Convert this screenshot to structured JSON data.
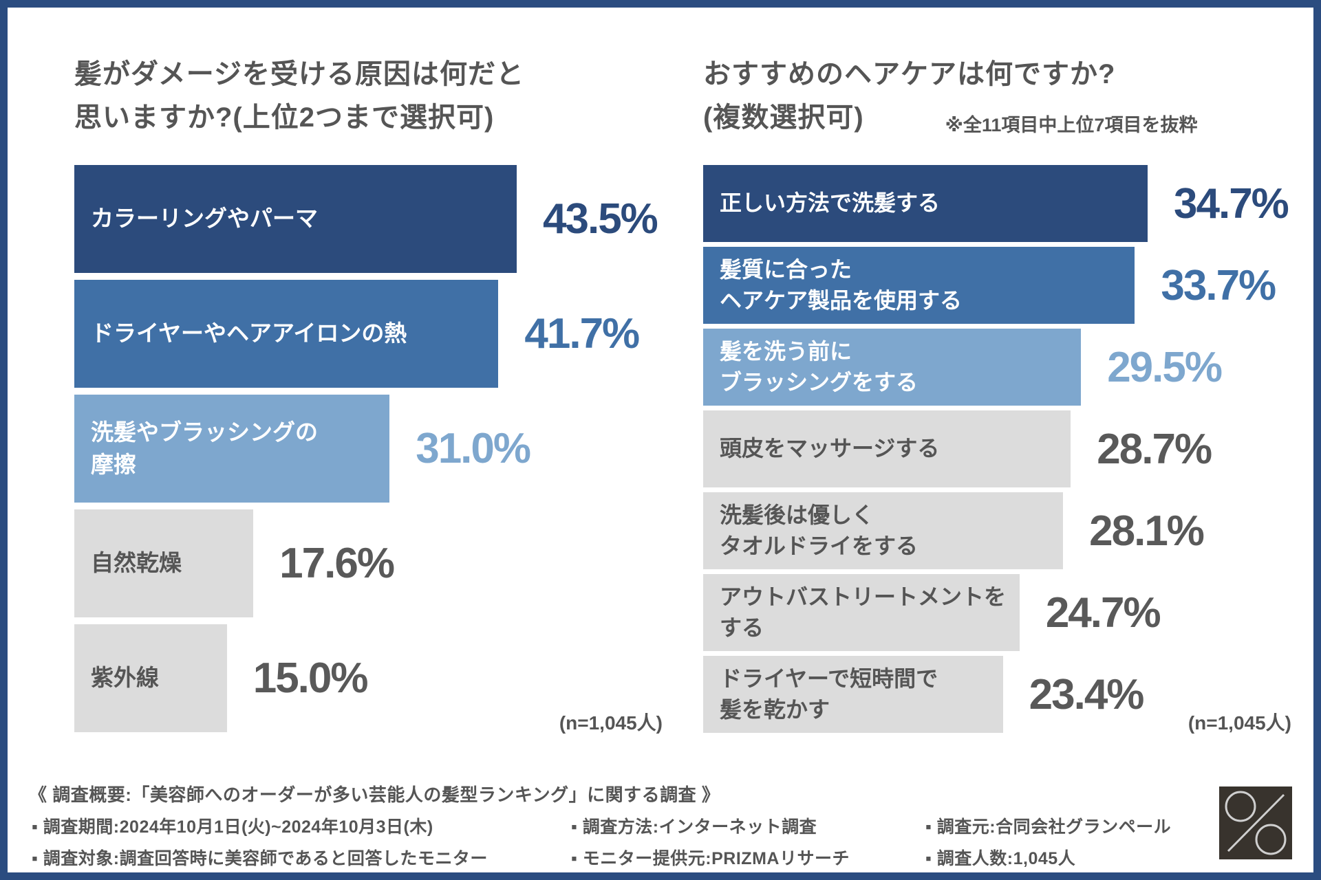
{
  "colors": {
    "navy": "#2c4b7c",
    "medium": "#4070a6",
    "light": "#7ea7ce",
    "gray": "#dcdcdc",
    "text_dark": "#555555",
    "pct_gray": "#595959",
    "border": "#2b4c80",
    "logo_bg": "#38332d",
    "logo_fg": "#cfcfcf"
  },
  "charts": [
    {
      "title_lines": [
        "髪がダメージを受ける原因は何だと",
        "思いますか?(上位2つまで選択可)"
      ],
      "note": "",
      "n_label": "(n=1,045人)",
      "bars": [
        {
          "lines": [
            "カラーリングやパーマ"
          ],
          "value": 43.5,
          "pct": "43.5%",
          "color": "navy"
        },
        {
          "lines": [
            "ドライヤーやヘアアイロンの熱"
          ],
          "value": 41.7,
          "pct": "41.7%",
          "color": "medium"
        },
        {
          "lines": [
            "洗髪やブラッシングの",
            "摩擦"
          ],
          "value": 31.0,
          "pct": "31.0%",
          "color": "light"
        },
        {
          "lines": [
            "自然乾燥"
          ],
          "value": 17.6,
          "pct": "17.6%",
          "color": "gray"
        },
        {
          "lines": [
            "紫外線"
          ],
          "value": 15.0,
          "pct": "15.0%",
          "color": "gray"
        }
      ]
    },
    {
      "title_lines": [
        "おすすめのヘアケアは何ですか?",
        "(複数選択可)"
      ],
      "note": "※全11項目中上位7項目を抜粋",
      "n_label": "(n=1,045人)",
      "bars": [
        {
          "lines": [
            "正しい方法で洗髪する"
          ],
          "value": 34.7,
          "pct": "34.7%",
          "color": "navy"
        },
        {
          "lines": [
            "髪質に合った",
            "ヘアケア製品を使用する"
          ],
          "value": 33.7,
          "pct": "33.7%",
          "color": "medium"
        },
        {
          "lines": [
            "髪を洗う前に",
            "ブラッシングをする"
          ],
          "value": 29.5,
          "pct": "29.5%",
          "color": "light"
        },
        {
          "lines": [
            "頭皮をマッサージする"
          ],
          "value": 28.7,
          "pct": "28.7%",
          "color": "gray"
        },
        {
          "lines": [
            "洗髪後は優しく",
            "タオルドライをする"
          ],
          "value": 28.1,
          "pct": "28.1%",
          "color": "gray"
        },
        {
          "lines": [
            "アウトバストリートメントを",
            "する"
          ],
          "value": 24.7,
          "pct": "24.7%",
          "color": "gray"
        },
        {
          "lines": [
            "ドライヤーで短時間で",
            "髪を乾かす"
          ],
          "value": 23.4,
          "pct": "23.4%",
          "color": "gray"
        }
      ]
    }
  ],
  "footer": {
    "heading": "《 調査概要:「美容師へのオーダーが多い芸能人の髪型ランキング」に関する調査 》",
    "period": "▪ 調査期間:2024年10月1日(火)~2024年10月3日(木)",
    "method": "▪ 調査方法:インターネット調査",
    "source": "▪ 調査元:合同会社グランペール",
    "subjects": "▪ 調査対象:調査回答時に美容師であると回答したモニター",
    "provider": "▪ モニター提供元:PRIZMAリサーチ",
    "count": "▪ 調査人数:1,045人"
  },
  "logo": {
    "symbol": "%"
  },
  "chart_data": [
    {
      "type": "bar",
      "orientation": "horizontal",
      "title": "髪がダメージを受ける原因は何だと思いますか?(上位2つまで選択可)",
      "categories": [
        "カラーリングやパーマ",
        "ドライヤーやヘアアイロンの熱",
        "洗髪やブラッシングの摩擦",
        "自然乾燥",
        "紫外線"
      ],
      "values": [
        43.5,
        41.7,
        31.0,
        17.6,
        15.0
      ],
      "unit": "%",
      "sample_note": "(n=1,045人)",
      "bar_colors": [
        "#2c4b7c",
        "#4070a6",
        "#7ea7ce",
        "#dcdcdc",
        "#dcdcdc"
      ],
      "grid": false,
      "value_labels_shown": true
    },
    {
      "type": "bar",
      "orientation": "horizontal",
      "title": "おすすめのヘアケアは何ですか?(複数選択可)",
      "subtitle": "※全11項目中上位7項目を抜粋",
      "categories": [
        "正しい方法で洗髪する",
        "髪質に合ったヘアケア製品を使用する",
        "髪を洗う前にブラッシングをする",
        "頭皮をマッサージする",
        "洗髪後は優しくタオルドライをする",
        "アウトバストリートメントをする",
        "ドライヤーで短時間で髪を乾かす"
      ],
      "values": [
        34.7,
        33.7,
        29.5,
        28.7,
        28.1,
        24.7,
        23.4
      ],
      "unit": "%",
      "sample_note": "(n=1,045人)",
      "bar_colors": [
        "#2c4b7c",
        "#4070a6",
        "#7ea7ce",
        "#dcdcdc",
        "#dcdcdc",
        "#dcdcdc",
        "#dcdcdc"
      ],
      "grid": false,
      "value_labels_shown": true
    }
  ]
}
